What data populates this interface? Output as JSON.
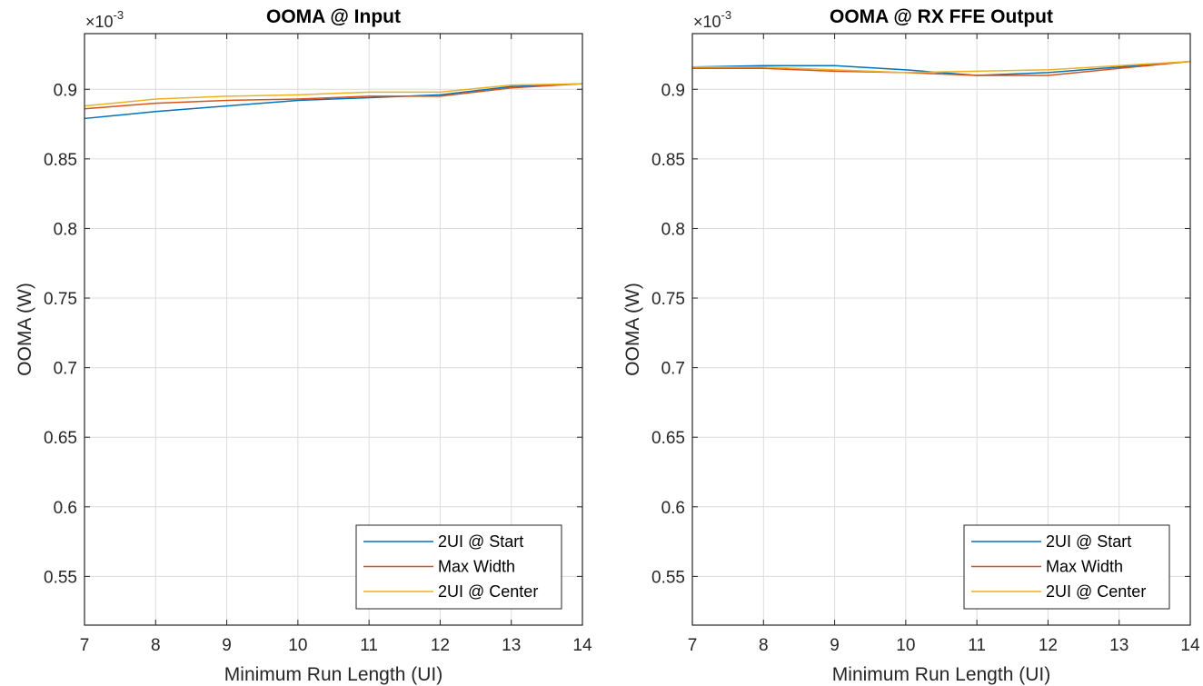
{
  "chart_data": [
    {
      "type": "line",
      "title": "OOMA @ Input",
      "xlabel": "Minimum Run Length (UI)",
      "ylabel": "OOMA (W)",
      "y_exponent": "-3",
      "xlim": [
        7,
        14
      ],
      "ylim": [
        0.515,
        0.94
      ],
      "xticks": [
        7,
        8,
        9,
        10,
        11,
        12,
        13,
        14
      ],
      "yticks": [
        0.55,
        0.6,
        0.65,
        0.7,
        0.75,
        0.8,
        0.85,
        0.9
      ],
      "ytick_labels": [
        "0.55",
        "0.6",
        "0.65",
        "0.7",
        "0.75",
        "0.8",
        "0.85",
        "0.9"
      ],
      "grid": true,
      "legend": "bottom-right",
      "x": [
        7,
        8,
        9,
        10,
        11,
        12,
        13,
        14
      ],
      "series": [
        {
          "name": "2UI @ Start",
          "color": "#0072BD",
          "values": [
            0.879,
            0.884,
            0.888,
            0.892,
            0.894,
            0.896,
            0.902,
            0.904
          ]
        },
        {
          "name": "Max Width",
          "color": "#D95319",
          "values": [
            0.886,
            0.89,
            0.892,
            0.893,
            0.895,
            0.895,
            0.901,
            0.904
          ]
        },
        {
          "name": "2UI @ Center",
          "color": "#EDB120",
          "values": [
            0.888,
            0.893,
            0.895,
            0.896,
            0.898,
            0.898,
            0.903,
            0.904
          ]
        }
      ]
    },
    {
      "type": "line",
      "title": "OOMA @ RX FFE Output",
      "xlabel": "Minimum Run Length (UI)",
      "ylabel": "OOMA (W)",
      "y_exponent": "-3",
      "xlim": [
        7,
        14
      ],
      "ylim": [
        0.515,
        0.94
      ],
      "xticks": [
        7,
        8,
        9,
        10,
        11,
        12,
        13,
        14
      ],
      "yticks": [
        0.55,
        0.6,
        0.65,
        0.7,
        0.75,
        0.8,
        0.85,
        0.9
      ],
      "ytick_labels": [
        "0.55",
        "0.6",
        "0.65",
        "0.7",
        "0.75",
        "0.8",
        "0.85",
        "0.9"
      ],
      "grid": true,
      "legend": "bottom-right",
      "x": [
        7,
        8,
        9,
        10,
        11,
        12,
        13,
        14
      ],
      "series": [
        {
          "name": "2UI @ Start",
          "color": "#0072BD",
          "values": [
            0.916,
            0.917,
            0.917,
            0.914,
            0.91,
            0.912,
            0.916,
            0.92
          ]
        },
        {
          "name": "Max Width",
          "color": "#D95319",
          "values": [
            0.915,
            0.915,
            0.913,
            0.912,
            0.91,
            0.91,
            0.915,
            0.92
          ]
        },
        {
          "name": "2UI @ Center",
          "color": "#EDB120",
          "values": [
            0.916,
            0.916,
            0.914,
            0.912,
            0.913,
            0.914,
            0.917,
            0.92
          ]
        }
      ]
    }
  ]
}
